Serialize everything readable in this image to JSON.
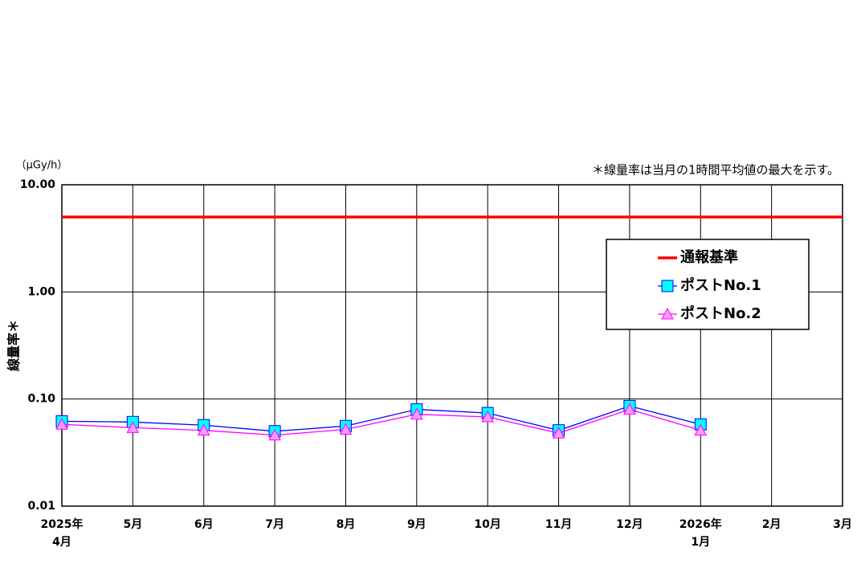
{
  "chart_data": {
    "type": "line",
    "y_unit": "（μGy/h）",
    "ylabel": "線量率＊",
    "note": "＊線量率は当月の1時間平均値の最大を示す。",
    "categories": [
      "2025年4月",
      "5月",
      "6月",
      "7月",
      "8月",
      "9月",
      "10月",
      "11月",
      "12月",
      "2026年1月",
      "2月",
      "3月"
    ],
    "series": [
      {
        "name": "通報基準",
        "color": "#ff0000",
        "marker": "none",
        "values": [
          5,
          5,
          5,
          5,
          5,
          5,
          5,
          5,
          5,
          5,
          5,
          5
        ]
      },
      {
        "name": "ポストNo.1",
        "color": "#0000ff",
        "marker": "square",
        "marker_color": "#00ffff",
        "values": [
          0.062,
          0.061,
          0.057,
          0.05,
          0.056,
          0.08,
          0.074,
          0.051,
          0.086,
          0.058,
          null,
          null
        ]
      },
      {
        "name": "ポストNo.2",
        "color": "#ff00ff",
        "marker": "triangle",
        "marker_color": "#ff99ff",
        "values": [
          0.058,
          0.054,
          0.051,
          0.046,
          0.052,
          0.072,
          0.068,
          0.048,
          0.08,
          0.051,
          null,
          null
        ]
      }
    ],
    "ylog": true,
    "ylim": [
      0.01,
      10
    ],
    "yticks": [
      {
        "value": 0.01,
        "label": "0.01"
      },
      {
        "value": 0.1,
        "label": "0.10"
      },
      {
        "value": 1,
        "label": "1.00"
      },
      {
        "value": 10,
        "label": "10.00"
      }
    ],
    "grid": true,
    "legend": "upper right"
  }
}
